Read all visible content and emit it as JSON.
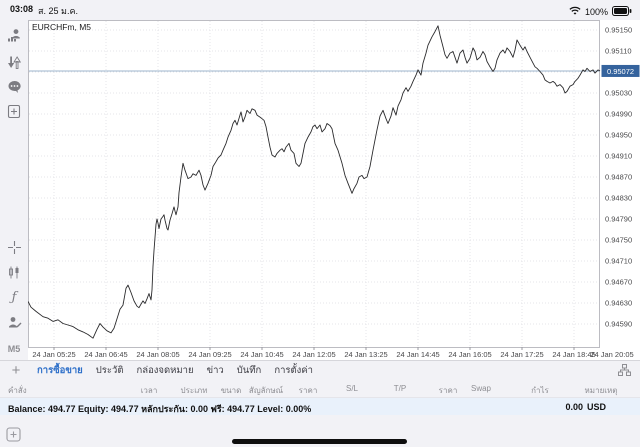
{
  "status_bar": {
    "time": "03:08",
    "date": "ส. 25 ม.ค.",
    "battery": "100%"
  },
  "sidebar": {
    "top_icons": [
      "quotes-icon",
      "trade-icon",
      "chat-icon",
      "new-order-icon"
    ],
    "bottom_icons": [
      "crosshair-icon",
      "chart-type-icon",
      "indicators-icon",
      "objects-icon"
    ],
    "indicators_glyph": "ƒ",
    "timeframe": "M5"
  },
  "chart_data": {
    "type": "line",
    "title": "EURCHFm, M5",
    "symbol": "EURCHFm",
    "period": "M5",
    "current_price": "0.95072",
    "current_price_value": 0.95072,
    "y_axis": {
      "top": 0.9515,
      "step": 0.0004,
      "count": 15,
      "hidden_tick": "0.95070"
    },
    "y_tick_labels": [
      "0.95150",
      "0.95110",
      "0.95030",
      "0.94990",
      "0.94950",
      "0.94910",
      "0.94870",
      "0.94830",
      "0.94790",
      "0.94750",
      "0.94710",
      "0.94670",
      "0.94630",
      "0.94590"
    ],
    "x_ticks": [
      "24 Jan 05:25",
      "24 Jan 06:45",
      "24 Jan 08:05",
      "24 Jan 09:25",
      "24 Jan 10:45",
      "24 Jan 12:05",
      "24 Jan 13:25",
      "24 Jan 14:45",
      "24 Jan 16:05",
      "24 Jan 17:25",
      "24 Jan 18:45",
      "24 Jan 20:05"
    ],
    "grid": true,
    "line_color": "#2a2a2c",
    "price_line_color": "#9db4cd",
    "badge_color": "#35639d",
    "points": [
      [
        28,
        0.94633
      ],
      [
        31,
        0.94622
      ],
      [
        36,
        0.94614
      ],
      [
        43,
        0.94604
      ],
      [
        48,
        0.94601
      ],
      [
        53,
        0.94595
      ],
      [
        58,
        0.94598
      ],
      [
        63,
        0.94591
      ],
      [
        68,
        0.94588
      ],
      [
        73,
        0.94585
      ],
      [
        78,
        0.94579
      ],
      [
        83,
        0.94575
      ],
      [
        88,
        0.9457
      ],
      [
        93,
        0.94563
      ],
      [
        97,
        0.9458
      ],
      [
        100,
        0.94591
      ],
      [
        103,
        0.94584
      ],
      [
        107,
        0.94577
      ],
      [
        111,
        0.94573
      ],
      [
        114,
        0.94582
      ],
      [
        117,
        0.946
      ],
      [
        120,
        0.94618
      ],
      [
        123,
        0.94626
      ],
      [
        126,
        0.94658
      ],
      [
        128,
        0.94664
      ],
      [
        131,
        0.9465
      ],
      [
        134,
        0.94634
      ],
      [
        137,
        0.94624
      ],
      [
        139,
        0.94621
      ],
      [
        141,
        0.94628
      ],
      [
        143,
        0.94634
      ],
      [
        145,
        0.94629
      ],
      [
        147,
        0.94638
      ],
      [
        149,
        0.94648
      ],
      [
        151,
        0.94636
      ],
      [
        152,
        0.94655
      ],
      [
        153,
        0.947
      ],
      [
        154,
        0.9473
      ],
      [
        155,
        0.94755
      ],
      [
        156,
        0.9478
      ],
      [
        157,
        0.9479
      ],
      [
        158,
        0.94782
      ],
      [
        159,
        0.94772
      ],
      [
        161,
        0.9479
      ],
      [
        163,
        0.94795
      ],
      [
        164,
        0.94798
      ],
      [
        165,
        0.94788
      ],
      [
        167,
        0.94772
      ],
      [
        168,
        0.94769
      ],
      [
        170,
        0.94788
      ],
      [
        172,
        0.948
      ],
      [
        174,
        0.94813
      ],
      [
        175,
        0.94805
      ],
      [
        176,
        0.94798
      ],
      [
        178,
        0.94813
      ],
      [
        179,
        0.9484
      ],
      [
        181,
        0.9487
      ],
      [
        183,
        0.94896
      ],
      [
        185,
        0.94883
      ],
      [
        188,
        0.94867
      ],
      [
        191,
        0.9487
      ],
      [
        193,
        0.94876
      ],
      [
        196,
        0.94873
      ],
      [
        199,
        0.94883
      ],
      [
        201,
        0.94873
      ],
      [
        203,
        0.94855
      ],
      [
        205,
        0.94845
      ],
      [
        208,
        0.94858
      ],
      [
        211,
        0.94873
      ],
      [
        213,
        0.9489
      ],
      [
        215,
        0.94896
      ],
      [
        218,
        0.94906
      ],
      [
        221,
        0.94912
      ],
      [
        223,
        0.94921
      ],
      [
        226,
        0.94934
      ],
      [
        228,
        0.94946
      ],
      [
        231,
        0.94959
      ],
      [
        233,
        0.94972
      ],
      [
        235,
        0.94978
      ],
      [
        237,
        0.94969
      ],
      [
        240,
        0.94988
      ],
      [
        241,
        0.94994
      ],
      [
        243,
        0.94975
      ],
      [
        245,
        0.94984
      ],
      [
        247,
        0.94997
      ],
      [
        250,
        0.94991
      ],
      [
        252,
        0.95
      ],
      [
        255,
        0.94997
      ],
      [
        257,
        0.94988
      ],
      [
        260,
        0.94984
      ],
      [
        262,
        0.94981
      ],
      [
        264,
        0.94978
      ],
      [
        266,
        0.94966
      ],
      [
        268,
        0.94946
      ],
      [
        270,
        0.94927
      ],
      [
        272,
        0.94912
      ],
      [
        275,
        0.94908
      ],
      [
        277,
        0.94915
      ],
      [
        280,
        0.94921
      ],
      [
        282,
        0.94924
      ],
      [
        284,
        0.94918
      ],
      [
        286,
        0.94927
      ],
      [
        289,
        0.94934
      ],
      [
        291,
        0.94921
      ],
      [
        294,
        0.94915
      ],
      [
        296,
        0.94896
      ],
      [
        299,
        0.9489
      ],
      [
        301,
        0.94896
      ],
      [
        303,
        0.94915
      ],
      [
        305,
        0.94934
      ],
      [
        308,
        0.94946
      ],
      [
        311,
        0.94956
      ],
      [
        313,
        0.94966
      ],
      [
        315,
        0.94969
      ],
      [
        317,
        0.94962
      ],
      [
        320,
        0.94969
      ],
      [
        322,
        0.94956
      ],
      [
        325,
        0.94962
      ],
      [
        327,
        0.94972
      ],
      [
        330,
        0.94968
      ],
      [
        332,
        0.94962
      ],
      [
        335,
        0.94934
      ],
      [
        338,
        0.94921
      ],
      [
        342,
        0.94896
      ],
      [
        345,
        0.94873
      ],
      [
        348,
        0.94858
      ],
      [
        352,
        0.94839
      ],
      [
        354,
        0.94848
      ],
      [
        357,
        0.94858
      ],
      [
        359,
        0.9487
      ],
      [
        362,
        0.94873
      ],
      [
        364,
        0.94867
      ],
      [
        367,
        0.9487
      ],
      [
        370,
        0.9489
      ],
      [
        373,
        0.94921
      ],
      [
        377,
        0.9496
      ],
      [
        380,
        0.94986
      ],
      [
        383,
        0.94997
      ],
      [
        386,
        0.94981
      ],
      [
        388,
        0.94972
      ],
      [
        391,
        0.94986
      ],
      [
        393,
        0.95002
      ],
      [
        396,
        0.94988
      ],
      [
        398,
        0.95005
      ],
      [
        401,
        0.95017
      ],
      [
        403,
        0.9503
      ],
      [
        406,
        0.9504
      ],
      [
        408,
        0.95033
      ],
      [
        411,
        0.95043
      ],
      [
        413,
        0.95052
      ],
      [
        416,
        0.95064
      ],
      [
        418,
        0.95074
      ],
      [
        421,
        0.95064
      ],
      [
        423,
        0.95087
      ],
      [
        426,
        0.95106
      ],
      [
        428,
        0.95121
      ],
      [
        432,
        0.95137
      ],
      [
        435,
        0.95147
      ],
      [
        438,
        0.95158
      ],
      [
        440,
        0.9514
      ],
      [
        443,
        0.95118
      ],
      [
        445,
        0.95103
      ],
      [
        447,
        0.95096
      ],
      [
        450,
        0.95106
      ],
      [
        453,
        0.95109
      ],
      [
        455,
        0.95098
      ],
      [
        457,
        0.95087
      ],
      [
        460,
        0.95106
      ],
      [
        463,
        0.95112
      ],
      [
        465,
        0.95098
      ],
      [
        467,
        0.95087
      ],
      [
        470,
        0.95096
      ],
      [
        473,
        0.95116
      ],
      [
        475,
        0.95109
      ],
      [
        477,
        0.95093
      ],
      [
        480,
        0.95098
      ],
      [
        483,
        0.95109
      ],
      [
        485,
        0.95103
      ],
      [
        487,
        0.9509
      ],
      [
        490,
        0.9508
      ],
      [
        493,
        0.95071
      ],
      [
        495,
        0.95077
      ],
      [
        497,
        0.95093
      ],
      [
        500,
        0.95106
      ],
      [
        503,
        0.95112
      ],
      [
        505,
        0.95106
      ],
      [
        507,
        0.95116
      ],
      [
        510,
        0.95109
      ],
      [
        513,
        0.95098
      ],
      [
        515,
        0.95112
      ],
      [
        517,
        0.95131
      ],
      [
        520,
        0.95121
      ],
      [
        523,
        0.95112
      ],
      [
        525,
        0.95118
      ],
      [
        527,
        0.95109
      ],
      [
        530,
        0.95098
      ],
      [
        533,
        0.95087
      ],
      [
        535,
        0.9508
      ],
      [
        537,
        0.95077
      ],
      [
        540,
        0.95071
      ],
      [
        543,
        0.95064
      ],
      [
        545,
        0.95055
      ],
      [
        547,
        0.95052
      ],
      [
        550,
        0.95049
      ],
      [
        553,
        0.95052
      ],
      [
        555,
        0.95049
      ],
      [
        557,
        0.95043
      ],
      [
        560,
        0.95046
      ],
      [
        563,
        0.9504
      ],
      [
        565,
        0.9503
      ],
      [
        567,
        0.95033
      ],
      [
        570,
        0.95043
      ],
      [
        573,
        0.95046
      ],
      [
        575,
        0.95052
      ],
      [
        578,
        0.95058
      ],
      [
        580,
        0.95064
      ],
      [
        583,
        0.95074
      ],
      [
        585,
        0.95071
      ],
      [
        587,
        0.95077
      ],
      [
        590,
        0.95071
      ],
      [
        593,
        0.95074
      ],
      [
        595,
        0.95068
      ],
      [
        598,
        0.95074
      ],
      [
        600,
        0.95072
      ]
    ]
  },
  "bottom_panel": {
    "tabs": [
      {
        "label": "การซื้อขาย",
        "active": true
      },
      {
        "label": "ประวัติ",
        "active": false
      },
      {
        "label": "กล่องจดหมาย",
        "active": false
      },
      {
        "label": "ข่าว",
        "active": false
      },
      {
        "label": "บันทึก",
        "active": false
      },
      {
        "label": "การตั้งค่า",
        "active": false
      }
    ],
    "columns": [
      "คำสั่ง",
      "เวลา",
      "ประเภท",
      "ขนาด",
      "สัญลักษณ์",
      "ราคา",
      "S/L",
      "T/P",
      "ราคา",
      "Swap",
      "กำไร",
      "หมายเหตุ"
    ],
    "balance_line": "Balance: 494.77 Equity: 494.77 หลักประกัน: 0.00 ฟรี: 494.77 Level: 0.00%",
    "profit": "0.00",
    "currency": "USD"
  },
  "colors": {
    "accent": "#2d6fc9",
    "price_badge": "#35639d",
    "balance_row_bg": "#e9f1fb",
    "app_bg": "#f2f2f6"
  }
}
